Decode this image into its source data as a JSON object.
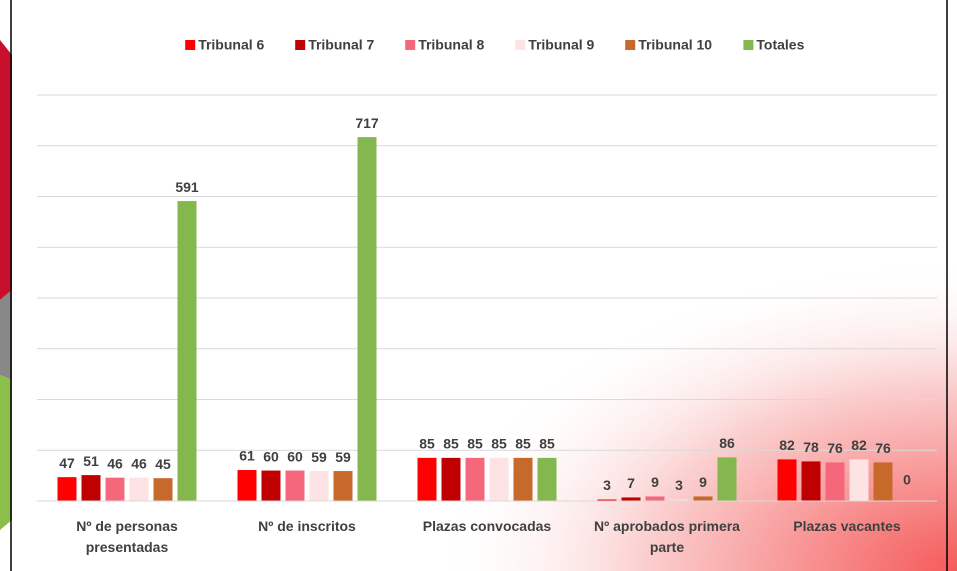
{
  "chart_data": {
    "type": "bar",
    "categories": [
      "Nº de personas presentadas",
      "Nº de inscritos",
      "Plazas convocadas",
      "Nº aprobados primera parte",
      "Plazas vacantes"
    ],
    "series": [
      {
        "name": "Tribunal 6",
        "color": "#ff0000",
        "values": [
          47,
          61,
          85,
          3,
          82
        ]
      },
      {
        "name": "Tribunal 7",
        "color": "#c00000",
        "values": [
          51,
          60,
          85,
          7,
          78
        ]
      },
      {
        "name": "Tribunal 8",
        "color": "#f5687c",
        "values": [
          46,
          60,
          85,
          9,
          76
        ]
      },
      {
        "name": "Tribunal 9",
        "color": "#fde3e3",
        "values": [
          46,
          59,
          85,
          3,
          82
        ]
      },
      {
        "name": "Tribunal 10",
        "color": "#c8692c",
        "values": [
          45,
          59,
          85,
          9,
          76
        ]
      },
      {
        "name": "Totales",
        "color": "#84b84f",
        "values": [
          591,
          717,
          85,
          86,
          0
        ]
      }
    ],
    "ylim": [
      0,
      800
    ],
    "yticks": [
      0,
      100,
      200,
      300,
      400,
      500,
      600,
      700,
      800
    ],
    "grid": true,
    "legend": "top"
  }
}
